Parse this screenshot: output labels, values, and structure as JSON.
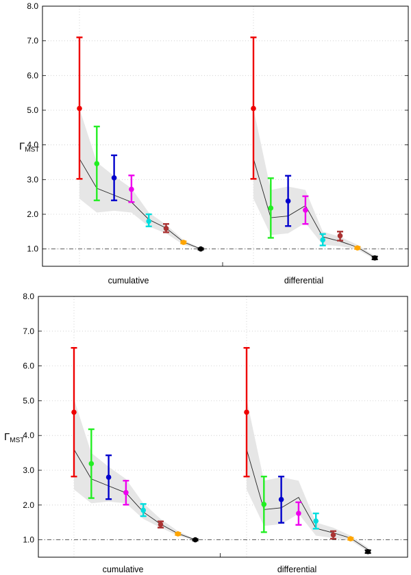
{
  "chart_data": [
    {
      "type": "errorbar",
      "ylabel_main": "Γ",
      "ylabel_sub": "MST",
      "ylim": [
        0.5,
        8.0
      ],
      "yticks": [
        "1.0",
        "2.0",
        "3.0",
        "4.0",
        "5.0",
        "6.0",
        "7.0",
        "8.0"
      ],
      "reference_line": 1.0,
      "colors": [
        "#ee0000",
        "#22ee22",
        "#0000cc",
        "#ee00ee",
        "#00dddd",
        "#aa3333",
        "#ffa500",
        "#000000"
      ],
      "groups": [
        {
          "label": "cumulative",
          "points": [
            {
              "y": 5.05,
              "low": 3.02,
              "high": 7.1
            },
            {
              "y": 3.46,
              "low": 2.4,
              "high": 4.53
            },
            {
              "y": 3.05,
              "low": 2.4,
              "high": 3.7
            },
            {
              "y": 2.72,
              "low": 2.35,
              "high": 3.12
            },
            {
              "y": 1.8,
              "low": 1.65,
              "high": 2.0
            },
            {
              "y": 1.59,
              "low": 1.48,
              "high": 1.72
            },
            {
              "y": 1.19,
              "low": 1.16,
              "high": 1.22
            },
            {
              "y": 1.0,
              "low": 0.98,
              "high": 1.02
            }
          ],
          "line": [
            3.6,
            2.75,
            2.55,
            2.35,
            1.85,
            1.6,
            1.2,
            1.0
          ],
          "band_low": [
            2.45,
            2.05,
            2.1,
            2.05,
            1.65,
            1.45,
            1.12,
            0.98
          ],
          "band_high": [
            5.05,
            3.5,
            3.1,
            2.75,
            2.05,
            1.7,
            1.26,
            1.02
          ]
        },
        {
          "label": "differential",
          "points": [
            {
              "y": 5.05,
              "low": 3.02,
              "high": 7.1
            },
            {
              "y": 2.18,
              "low": 1.32,
              "high": 3.04
            },
            {
              "y": 2.38,
              "low": 1.66,
              "high": 3.11
            },
            {
              "y": 2.12,
              "low": 1.72,
              "high": 2.52
            },
            {
              "y": 1.26,
              "low": 1.1,
              "high": 1.43
            },
            {
              "y": 1.38,
              "low": 1.24,
              "high": 1.5
            },
            {
              "y": 1.03,
              "low": 1.0,
              "high": 1.06
            },
            {
              "y": 0.74,
              "low": 0.7,
              "high": 0.78
            }
          ],
          "line": [
            3.6,
            1.9,
            1.95,
            2.25,
            1.35,
            1.22,
            1.05,
            0.75
          ],
          "band_low": [
            2.45,
            1.4,
            1.45,
            1.75,
            1.12,
            1.08,
            0.98,
            0.7
          ],
          "band_high": [
            5.05,
            2.7,
            2.8,
            2.7,
            1.5,
            1.35,
            1.12,
            0.8
          ]
        }
      ]
    },
    {
      "type": "errorbar",
      "ylabel_main": "Γ",
      "ylabel_sub": "MST",
      "ylim": [
        0.5,
        8.0
      ],
      "yticks": [
        "1.0",
        "2.0",
        "3.0",
        "4.0",
        "5.0",
        "6.0",
        "7.0",
        "8.0"
      ],
      "reference_line": 1.0,
      "colors": [
        "#ee0000",
        "#22ee22",
        "#0000cc",
        "#ee00ee",
        "#00dddd",
        "#aa3333",
        "#ffa500",
        "#000000"
      ],
      "groups": [
        {
          "label": "cumulative",
          "points": [
            {
              "y": 4.67,
              "low": 2.82,
              "high": 6.52
            },
            {
              "y": 3.19,
              "low": 2.2,
              "high": 4.18
            },
            {
              "y": 2.8,
              "low": 2.17,
              "high": 3.43
            },
            {
              "y": 2.36,
              "low": 2.01,
              "high": 2.7
            },
            {
              "y": 1.85,
              "low": 1.68,
              "high": 2.03
            },
            {
              "y": 1.44,
              "low": 1.35,
              "high": 1.53
            },
            {
              "y": 1.17,
              "low": 1.14,
              "high": 1.2
            },
            {
              "y": 1.0,
              "low": 0.98,
              "high": 1.02
            }
          ],
          "line": [
            3.6,
            2.75,
            2.55,
            2.35,
            1.8,
            1.45,
            1.18,
            1.0
          ],
          "band_low": [
            2.45,
            2.05,
            2.1,
            2.05,
            1.6,
            1.35,
            1.12,
            0.98
          ],
          "band_high": [
            5.05,
            3.5,
            3.1,
            2.75,
            2.05,
            1.6,
            1.25,
            1.02
          ]
        },
        {
          "label": "differential",
          "points": [
            {
              "y": 4.67,
              "low": 2.82,
              "high": 6.52
            },
            {
              "y": 2.02,
              "low": 1.22,
              "high": 2.82
            },
            {
              "y": 2.16,
              "low": 1.49,
              "high": 2.82
            },
            {
              "y": 1.76,
              "low": 1.43,
              "high": 2.08
            },
            {
              "y": 1.54,
              "low": 1.32,
              "high": 1.76
            },
            {
              "y": 1.14,
              "low": 1.03,
              "high": 1.25
            },
            {
              "y": 1.03,
              "low": 1.0,
              "high": 1.06
            },
            {
              "y": 0.66,
              "low": 0.62,
              "high": 0.7
            }
          ],
          "line": [
            3.6,
            1.87,
            1.92,
            2.22,
            1.33,
            1.2,
            1.05,
            0.72
          ],
          "band_low": [
            2.45,
            1.4,
            1.45,
            1.75,
            1.12,
            1.05,
            0.98,
            0.66
          ],
          "band_high": [
            5.05,
            2.7,
            2.8,
            2.7,
            1.5,
            1.35,
            1.12,
            0.78
          ]
        }
      ]
    }
  ]
}
